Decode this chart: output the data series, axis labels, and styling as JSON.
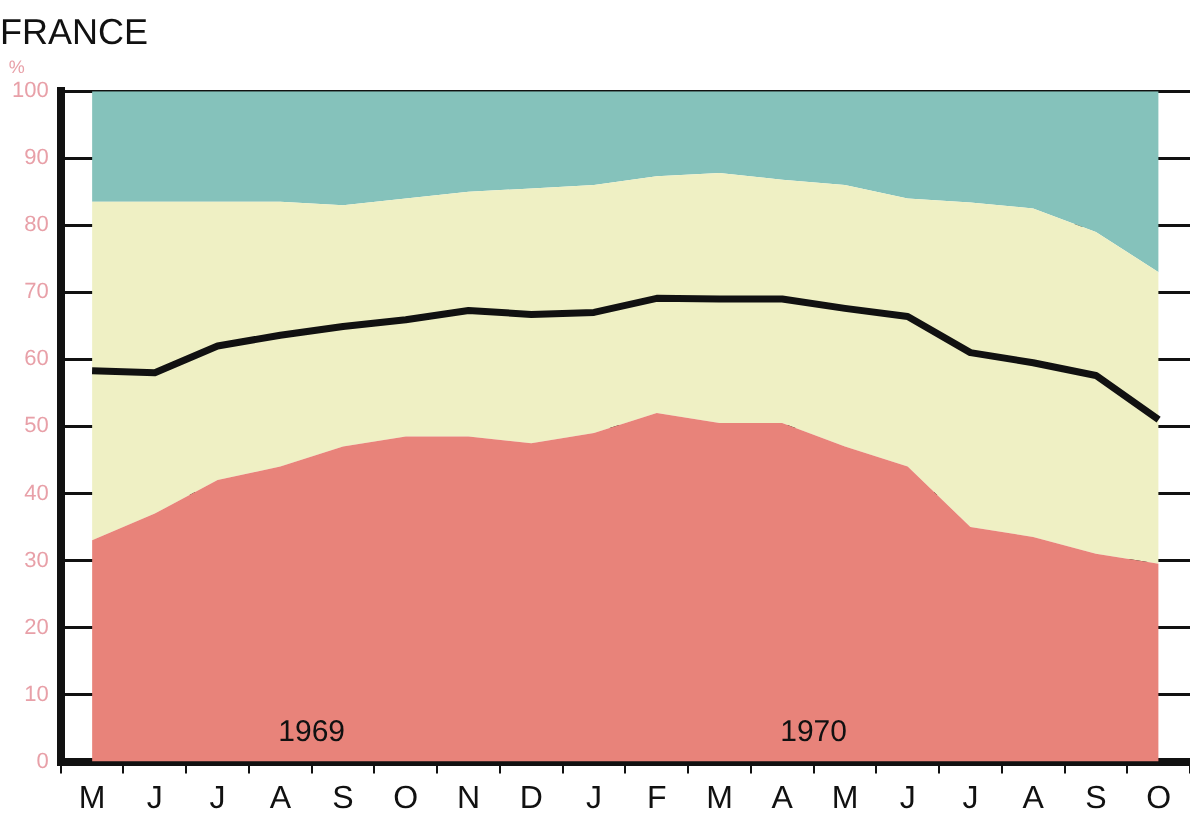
{
  "chart_data": {
    "type": "area",
    "title": "FRANCE",
    "ylabel": "%",
    "stacked": true,
    "categories": [
      "M",
      "J",
      "J",
      "A",
      "S",
      "O",
      "N",
      "D",
      "J",
      "F",
      "M",
      "A",
      "M",
      "J",
      "J",
      "A",
      "S",
      "O"
    ],
    "series": [
      {
        "color": "#e8837a",
        "values": [
          33,
          37,
          42,
          44,
          47,
          48.5,
          48.5,
          47.5,
          49,
          52,
          50.5,
          50.5,
          47,
          44,
          35,
          33.5,
          31,
          29.5
        ]
      },
      {
        "color": "#eff0c4",
        "values": [
          50.5,
          46.5,
          41.5,
          39.5,
          36,
          35.5,
          36.5,
          38,
          37,
          35.3,
          37.3,
          36.3,
          39,
          40,
          48.4,
          49,
          48,
          43.5
        ]
      },
      {
        "color": "#85c2bb",
        "values": [
          16.5,
          16.5,
          16.5,
          16.5,
          17,
          16,
          15,
          14.5,
          14,
          12.7,
          12.2,
          13.2,
          14,
          16,
          16.6,
          17.5,
          21,
          27
        ]
      },
      {
        "type": "line",
        "color": "#111111",
        "values": [
          58.3,
          58,
          62,
          63.6,
          64.9,
          65.9,
          67.3,
          66.7,
          67,
          69.1,
          69,
          69,
          67.6,
          66.4,
          61,
          59.5,
          57.6,
          51
        ]
      }
    ],
    "ylim": [
      0,
      100
    ],
    "yticks": [
      0,
      10,
      20,
      30,
      40,
      50,
      60,
      70,
      80,
      90,
      100
    ],
    "grid": "y",
    "legend": false,
    "marker": "none",
    "annotations": [
      "1969",
      "1970"
    ]
  }
}
